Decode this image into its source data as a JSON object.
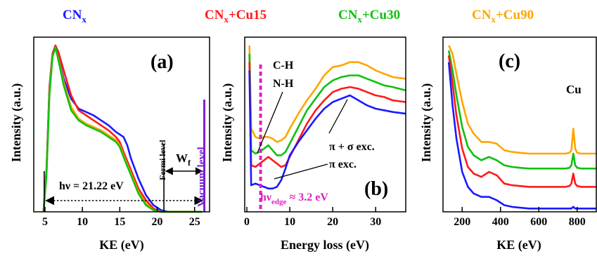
{
  "legend": {
    "items": [
      {
        "base": "CN",
        "sub": "x",
        "suffix": "",
        "color": "#1a1aff"
      },
      {
        "base": "CN",
        "sub": "x",
        "suffix": "+Cu15",
        "color": "#ff1a1a"
      },
      {
        "base": "CN",
        "sub": "x",
        "suffix": "+Cu30",
        "color": "#10c010"
      },
      {
        "base": "CN",
        "sub": "x",
        "suffix": "+Cu90",
        "color": "#ffa500"
      }
    ]
  },
  "chart_data": [
    {
      "type": "line",
      "panel_label": "(a)",
      "xlabel": "KE (eV)",
      "ylabel": "Intensity (a.u.)",
      "xlim": [
        3.5,
        27
      ],
      "ylim": [
        0,
        1.05
      ],
      "xticks": [
        5,
        10,
        15,
        20,
        25
      ],
      "xtick_labels": [
        "5",
        "10",
        "15",
        "20",
        "25"
      ],
      "annotations": {
        "photon_energy": "hν = 21.22 eV",
        "fermi": "Fermi level",
        "vacuum": "Vacuum level",
        "work_function": {
          "base": "W",
          "sub": "f"
        }
      },
      "markers": {
        "fermi_level_ke": 20.9,
        "vacuum_level_ke": 26.3,
        "photon_arrow_start_ke": 4.9
      },
      "series": [
        {
          "color": "#1a1aff",
          "x": [
            4.8,
            5.2,
            5.6,
            6.0,
            6.4,
            6.8,
            7.5,
            8.5,
            9.5,
            10.5,
            11.5,
            12.5,
            13.5,
            14.5,
            15.5,
            16.0,
            16.5,
            17.5,
            18.5,
            19.5,
            20.5,
            21.5,
            23,
            26
          ],
          "y": [
            0,
            0.25,
            0.75,
            0.95,
            1.0,
            0.93,
            0.8,
            0.68,
            0.62,
            0.6,
            0.58,
            0.55,
            0.52,
            0.48,
            0.45,
            0.4,
            0.32,
            0.2,
            0.1,
            0.04,
            0.01,
            0,
            0,
            0
          ]
        },
        {
          "color": "#ff1a1a",
          "x": [
            4.8,
            5.2,
            5.6,
            6.0,
            6.4,
            6.8,
            7.5,
            8.5,
            9.5,
            10.5,
            11.5,
            12.5,
            13.5,
            14.5,
            15.0,
            15.5,
            16.5,
            17.5,
            18.5,
            19.5,
            20.5,
            21.5,
            23,
            26
          ],
          "y": [
            0,
            0.24,
            0.74,
            0.95,
            1.0,
            0.96,
            0.85,
            0.7,
            0.61,
            0.58,
            0.55,
            0.52,
            0.49,
            0.45,
            0.42,
            0.36,
            0.25,
            0.14,
            0.07,
            0.02,
            0.0,
            0,
            0,
            0
          ]
        },
        {
          "color": "#ffa500",
          "x": [
            4.8,
            5.2,
            5.6,
            6.0,
            6.4,
            6.8,
            7.5,
            8.5,
            9.5,
            10.5,
            11.5,
            12.5,
            13.5,
            14.5,
            15.0,
            15.5,
            16.5,
            17.5,
            18.5,
            19.5,
            20.5,
            21.5,
            23,
            26
          ],
          "y": [
            0,
            0.23,
            0.72,
            0.94,
            0.98,
            0.92,
            0.78,
            0.63,
            0.56,
            0.53,
            0.51,
            0.49,
            0.46,
            0.43,
            0.4,
            0.34,
            0.23,
            0.12,
            0.05,
            0.01,
            0,
            0,
            0,
            0
          ]
        },
        {
          "color": "#10c010",
          "x": [
            4.8,
            5.2,
            5.6,
            6.0,
            6.4,
            6.8,
            7.5,
            8.5,
            9.5,
            10.5,
            11.5,
            12.5,
            13.5,
            14.5,
            15.0,
            15.5,
            16.5,
            17.5,
            18.5,
            19.5,
            20.5,
            21.5,
            23,
            26
          ],
          "y": [
            0,
            0.22,
            0.7,
            0.93,
            0.99,
            0.91,
            0.76,
            0.61,
            0.55,
            0.52,
            0.5,
            0.48,
            0.45,
            0.42,
            0.39,
            0.33,
            0.22,
            0.11,
            0.04,
            0.01,
            0,
            0,
            0,
            0
          ]
        }
      ]
    },
    {
      "type": "line",
      "panel_label": "(b)",
      "xlabel": "Energy loss (eV)",
      "ylabel": "Intensity (a.u.)",
      "xlim": [
        -0.5,
        37
      ],
      "ylim": [
        0,
        1.05
      ],
      "xticks": [
        0,
        10,
        20,
        30
      ],
      "xtick_labels": [
        "0",
        "10",
        "20",
        "30"
      ],
      "annotations": {
        "ch": "C-H",
        "nh": "N-H",
        "pi_sigma": "π + σ exc.",
        "pi": "π exc.",
        "edge": {
          "base": "hν",
          "sub": "edge",
          "suffix": " ≈ 3.2 eV"
        }
      },
      "edge_energy": 3.2,
      "series": [
        {
          "color": "#ffa500",
          "x": [
            0.6,
            1,
            2,
            3,
            4,
            5,
            6,
            7,
            8,
            9,
            10,
            12,
            14,
            16,
            18,
            20,
            22,
            24,
            26,
            28,
            30,
            32,
            34,
            37
          ],
          "y": [
            1.0,
            0.5,
            0.45,
            0.44,
            0.45,
            0.45,
            0.44,
            0.42,
            0.43,
            0.45,
            0.5,
            0.59,
            0.67,
            0.74,
            0.82,
            0.87,
            0.88,
            0.9,
            0.9,
            0.88,
            0.85,
            0.83,
            0.81,
            0.8
          ]
        },
        {
          "color": "#10c010",
          "x": [
            0.6,
            1,
            2,
            3,
            4,
            5,
            6,
            7,
            8,
            9,
            10,
            12,
            14,
            16,
            18,
            20,
            22,
            24,
            26,
            28,
            30,
            32,
            34,
            37
          ],
          "y": [
            0.95,
            0.37,
            0.35,
            0.36,
            0.38,
            0.4,
            0.37,
            0.34,
            0.34,
            0.36,
            0.41,
            0.51,
            0.61,
            0.68,
            0.75,
            0.79,
            0.81,
            0.82,
            0.82,
            0.8,
            0.78,
            0.76,
            0.75,
            0.73
          ]
        },
        {
          "color": "#ff1a1a",
          "x": [
            0.6,
            1,
            2,
            3,
            4,
            5,
            6,
            7,
            8,
            9,
            10,
            12,
            14,
            16,
            18,
            20,
            22,
            24,
            26,
            28,
            30,
            32,
            34,
            37
          ],
          "y": [
            0.9,
            0.28,
            0.27,
            0.29,
            0.31,
            0.33,
            0.31,
            0.29,
            0.27,
            0.28,
            0.33,
            0.43,
            0.53,
            0.61,
            0.67,
            0.72,
            0.74,
            0.75,
            0.74,
            0.72,
            0.7,
            0.69,
            0.67,
            0.66
          ]
        },
        {
          "color": "#1a1aff",
          "x": [
            0.6,
            1,
            2,
            3,
            4,
            5,
            6,
            7,
            8,
            9,
            10,
            12,
            14,
            16,
            18,
            20,
            22,
            24,
            26,
            28,
            30,
            32,
            34,
            37
          ],
          "y": [
            0.85,
            0.16,
            0.17,
            0.16,
            0.15,
            0.14,
            0.14,
            0.15,
            0.19,
            0.26,
            0.34,
            0.42,
            0.49,
            0.56,
            0.62,
            0.66,
            0.68,
            0.7,
            0.67,
            0.64,
            0.62,
            0.61,
            0.6,
            0.59
          ]
        }
      ]
    },
    {
      "type": "line",
      "panel_label": "(c)",
      "xlabel": "KE (eV)",
      "ylabel": "Intensity (a.u.)",
      "xlim": [
        100,
        900
      ],
      "ylim": [
        0,
        1.05
      ],
      "xticks": [
        200,
        400,
        600,
        800
      ],
      "xtick_labels": [
        "200",
        "400",
        "600",
        "800"
      ],
      "annotations": {
        "cu": "Cu"
      },
      "cu_peak_ke": 780,
      "series": [
        {
          "color": "#ffa500",
          "x": [
            130,
            150,
            170,
            200,
            230,
            260,
            300,
            340,
            380,
            420,
            460,
            500,
            550,
            600,
            650,
            700,
            740,
            760,
            770,
            780,
            790,
            800,
            820,
            850,
            900
          ],
          "y": [
            1.0,
            0.95,
            0.83,
            0.66,
            0.53,
            0.47,
            0.42,
            0.42,
            0.41,
            0.37,
            0.36,
            0.355,
            0.35,
            0.35,
            0.35,
            0.35,
            0.35,
            0.355,
            0.37,
            0.5,
            0.38,
            0.355,
            0.35,
            0.35,
            0.35
          ]
        },
        {
          "color": "#10c010",
          "x": [
            130,
            150,
            170,
            200,
            230,
            260,
            300,
            340,
            380,
            420,
            460,
            500,
            550,
            600,
            650,
            700,
            740,
            760,
            770,
            780,
            790,
            800,
            820,
            850,
            900
          ],
          "y": [
            0.97,
            0.85,
            0.7,
            0.51,
            0.39,
            0.34,
            0.31,
            0.33,
            0.31,
            0.28,
            0.27,
            0.265,
            0.26,
            0.26,
            0.26,
            0.26,
            0.26,
            0.265,
            0.28,
            0.35,
            0.28,
            0.265,
            0.26,
            0.26,
            0.26
          ]
        },
        {
          "color": "#ff1a1a",
          "x": [
            130,
            150,
            170,
            200,
            230,
            260,
            300,
            340,
            380,
            420,
            460,
            500,
            550,
            600,
            650,
            700,
            740,
            760,
            770,
            780,
            790,
            800,
            820,
            850,
            900
          ],
          "y": [
            0.94,
            0.77,
            0.58,
            0.38,
            0.27,
            0.23,
            0.21,
            0.24,
            0.22,
            0.17,
            0.16,
            0.155,
            0.15,
            0.15,
            0.15,
            0.15,
            0.15,
            0.155,
            0.17,
            0.23,
            0.17,
            0.155,
            0.15,
            0.15,
            0.15
          ]
        },
        {
          "color": "#1a1aff",
          "x": [
            130,
            150,
            170,
            200,
            230,
            260,
            300,
            340,
            380,
            420,
            460,
            500,
            550,
            600,
            650,
            700,
            740,
            760,
            770,
            780,
            790,
            800,
            820,
            850,
            900
          ],
          "y": [
            0.9,
            0.64,
            0.44,
            0.24,
            0.15,
            0.11,
            0.09,
            0.09,
            0.07,
            0.04,
            0.03,
            0.025,
            0.02,
            0.02,
            0.02,
            0.02,
            0.02,
            0.02,
            0.02,
            0.03,
            0.02,
            0.02,
            0.02,
            0.02,
            0.02
          ]
        }
      ]
    }
  ]
}
